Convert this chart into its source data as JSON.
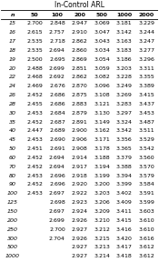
{
  "title": "In-Control ARL",
  "col_header": [
    "n",
    "50",
    "100",
    "200",
    "500",
    "1000",
    "2000"
  ],
  "rows": [
    [
      15,
      2.7,
      2.848,
      2.947,
      3.069,
      3.181,
      3.229
    ],
    [
      16,
      2.615,
      2.757,
      2.91,
      3.047,
      3.142,
      3.244
    ],
    [
      17,
      2.535,
      2.718,
      2.862,
      3.043,
      3.163,
      3.247
    ],
    [
      18,
      2.535,
      2.694,
      2.86,
      3.034,
      3.183,
      3.277
    ],
    [
      19,
      2.5,
      2.695,
      2.869,
      3.054,
      3.186,
      3.296
    ],
    [
      20,
      2.488,
      2.699,
      2.851,
      3.059,
      3.203,
      3.311
    ],
    [
      22,
      2.468,
      2.692,
      2.862,
      3.082,
      3.228,
      3.355
    ],
    [
      24,
      2.469,
      2.676,
      2.87,
      3.096,
      3.249,
      3.389
    ],
    [
      26,
      2.452,
      2.686,
      2.875,
      3.108,
      3.269,
      3.415
    ],
    [
      28,
      2.455,
      2.686,
      2.883,
      3.121,
      3.283,
      3.437
    ],
    [
      30,
      2.453,
      2.684,
      2.879,
      3.13,
      3.297,
      3.453
    ],
    [
      35,
      2.452,
      2.687,
      2.891,
      3.149,
      3.324,
      3.487
    ],
    [
      40,
      2.447,
      2.689,
      2.9,
      3.162,
      3.342,
      3.511
    ],
    [
      45,
      2.453,
      2.69,
      2.906,
      3.171,
      3.356,
      3.529
    ],
    [
      50,
      2.451,
      2.691,
      2.908,
      3.178,
      3.365,
      3.542
    ],
    [
      60,
      2.452,
      2.694,
      2.914,
      3.188,
      3.379,
      3.56
    ],
    [
      70,
      2.452,
      2.694,
      2.917,
      3.194,
      3.388,
      3.57
    ],
    [
      80,
      2.453,
      2.696,
      2.918,
      3.199,
      3.394,
      3.579
    ],
    [
      90,
      2.452,
      2.696,
      2.92,
      3.2,
      3.399,
      3.584
    ],
    [
      100,
      2.453,
      2.697,
      2.922,
      3.203,
      3.402,
      3.591
    ],
    [
      125,
      null,
      2.698,
      2.923,
      3.206,
      3.409,
      3.599
    ],
    [
      150,
      null,
      2.697,
      2.924,
      3.209,
      3.411,
      3.603
    ],
    [
      200,
      null,
      2.699,
      2.926,
      3.21,
      3.415,
      3.61
    ],
    [
      250,
      null,
      2.7,
      2.927,
      3.212,
      3.416,
      3.61
    ],
    [
      300,
      null,
      2.704,
      2.926,
      3.215,
      3.42,
      3.616
    ],
    [
      500,
      null,
      null,
      2.927,
      3.213,
      3.417,
      3.612
    ],
    [
      1000,
      null,
      null,
      2.927,
      3.214,
      3.418,
      3.612
    ]
  ]
}
